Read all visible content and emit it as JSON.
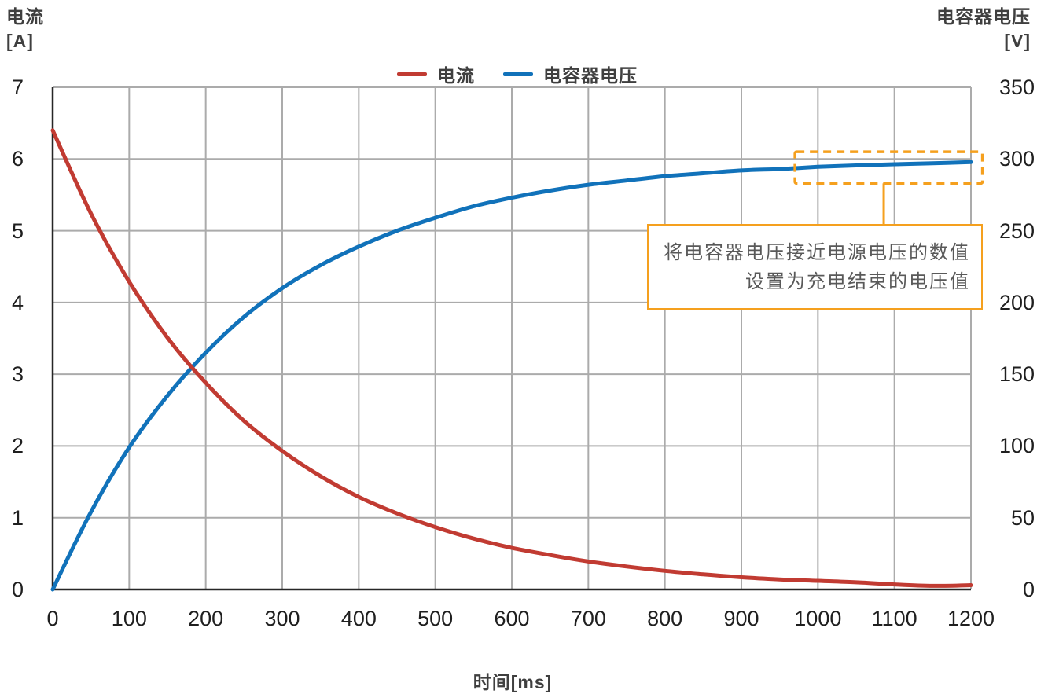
{
  "page": {
    "left_axis_title": "电流",
    "left_axis_unit": "[A]",
    "right_axis_title": "电容器电压",
    "right_axis_unit": "[V]",
    "x_axis_title": "时间[ms]"
  },
  "legend": {
    "items": [
      {
        "label": "电流",
        "color": "#C13B32"
      },
      {
        "label": "电容器电压",
        "color": "#1172BA"
      }
    ]
  },
  "annotation": {
    "line1": "将电容器电压接近电源电压的数值",
    "line2": "设置为充电结束的电压值",
    "color": "#F5A01E",
    "highlight_region": {
      "x_from_ms": 970,
      "x_to_ms": 1215,
      "v_from": 283,
      "v_to": 305
    },
    "connector_x_ms": 1086
  },
  "chart_data": {
    "type": "line",
    "title": "",
    "xlabel": "时间[ms]",
    "x_min": 0,
    "x_max": 1200,
    "x_ticks": [
      0,
      100,
      200,
      300,
      400,
      500,
      600,
      700,
      800,
      900,
      1000,
      1100,
      1200
    ],
    "left_axis": {
      "title": "电流 [A]",
      "min": 0,
      "max": 7,
      "ticks": [
        7,
        6,
        5,
        4,
        3,
        2,
        1,
        0
      ]
    },
    "right_axis": {
      "title": "电容器电压 [V]",
      "min": 0,
      "max": 350,
      "ticks": [
        350,
        300,
        250,
        200,
        150,
        100,
        50,
        0
      ]
    },
    "grid": true,
    "legend_position": "top-center",
    "x": [
      0,
      50,
      100,
      150,
      200,
      250,
      300,
      350,
      400,
      450,
      500,
      550,
      600,
      650,
      700,
      750,
      800,
      850,
      900,
      950,
      1000,
      1050,
      1100,
      1150,
      1200
    ],
    "series": [
      {
        "name": "电流",
        "axis": "left",
        "color": "#C13B32",
        "values": [
          6.4,
          5.24,
          4.29,
          3.51,
          2.88,
          2.35,
          1.93,
          1.58,
          1.29,
          1.06,
          0.87,
          0.71,
          0.58,
          0.48,
          0.39,
          0.32,
          0.26,
          0.21,
          0.17,
          0.14,
          0.12,
          0.1,
          0.07,
          0.05,
          0.06
        ]
      },
      {
        "name": "电容器电压",
        "axis": "right",
        "color": "#1172BA",
        "values": [
          0,
          54,
          99,
          135,
          165,
          190,
          210,
          226,
          239,
          250,
          259,
          267,
          273,
          278,
          282,
          285,
          288,
          290,
          292,
          293,
          294.5,
          295.5,
          296.3,
          297,
          297.8
        ]
      }
    ]
  }
}
